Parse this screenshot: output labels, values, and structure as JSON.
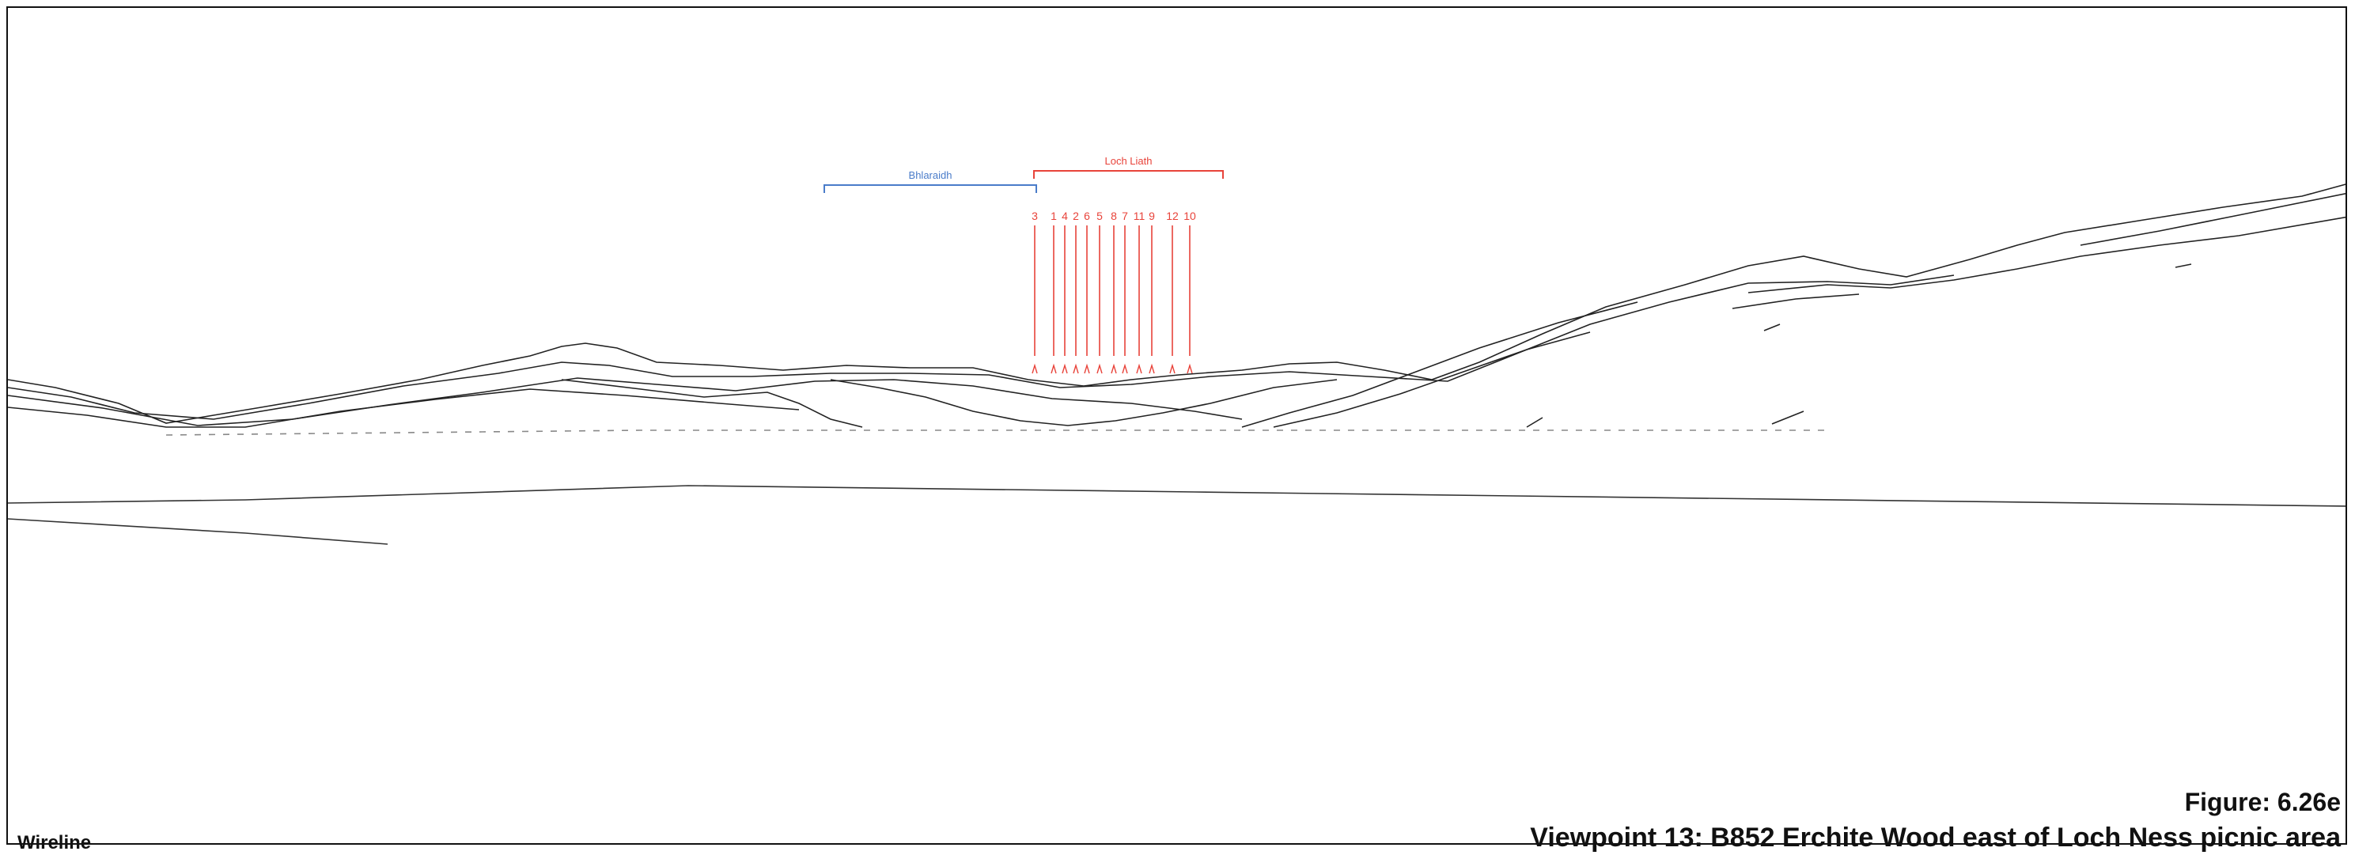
{
  "caption": {
    "type": "Wireline",
    "figure": "Figure: 6.26e",
    "viewpoint": "Viewpoint 13: B852 Erchite Wood east of Loch Ness picnic area"
  },
  "wind_farms": [
    {
      "name": "Bhlaraidh",
      "color": "#4a7cc9"
    },
    {
      "name": "Loch Liath",
      "color": "#e8433a"
    }
  ],
  "turbines": {
    "color": "#e8433a",
    "labels": [
      "3",
      "1",
      "4",
      "2",
      "6",
      "5",
      "8",
      "7",
      "11",
      "9",
      "12",
      "10"
    ]
  },
  "colors": {
    "terrain": "#222222",
    "background": "#ffffff"
  }
}
